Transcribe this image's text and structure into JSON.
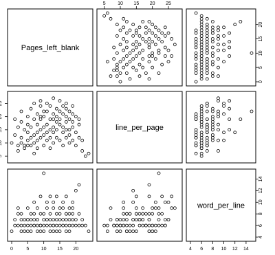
{
  "chart_data": {
    "type": "scatter",
    "variables": [
      "Pages_left_blank",
      "line_per_page",
      "word_per_line"
    ],
    "ranges": {
      "Pages_left_blank": [
        0,
        24
      ],
      "line_per_page": [
        4,
        28
      ],
      "word_per_line": [
        4,
        15
      ]
    },
    "ticks": {
      "Pages_left_blank": [
        0,
        5,
        10,
        15,
        20
      ],
      "line_per_page": [
        5,
        10,
        15,
        20,
        25
      ],
      "word_per_line": [
        4,
        6,
        8,
        10,
        12,
        14
      ]
    },
    "ticklabels": {
      "Pages_left_blank": [
        "0",
        "5",
        "10",
        "15",
        "20"
      ],
      "line_per_page": [
        "5",
        "10",
        "15",
        "20",
        "25"
      ],
      "word_per_line": [
        "4",
        "6",
        "8",
        "10",
        "12",
        "14"
      ]
    },
    "records": [
      [
        0,
        10,
        5
      ],
      [
        1,
        13,
        6
      ],
      [
        1,
        19,
        7
      ],
      [
        2,
        9,
        6
      ],
      [
        2,
        16,
        8
      ],
      [
        2,
        7,
        9
      ],
      [
        3,
        12,
        5
      ],
      [
        3,
        18,
        6
      ],
      [
        3,
        10,
        7
      ],
      [
        3,
        22,
        8
      ],
      [
        4,
        8,
        6
      ],
      [
        4,
        15,
        7
      ],
      [
        4,
        9,
        5
      ],
      [
        5,
        11,
        6
      ],
      [
        5,
        17,
        7
      ],
      [
        5,
        20,
        9
      ],
      [
        5,
        14,
        5
      ],
      [
        6,
        12,
        8
      ],
      [
        6,
        23,
        6
      ],
      [
        6,
        16,
        7
      ],
      [
        6,
        9,
        5
      ],
      [
        7,
        6,
        6
      ],
      [
        7,
        19,
        7
      ],
      [
        7,
        13,
        8
      ],
      [
        7,
        25,
        10
      ],
      [
        7,
        10,
        6
      ],
      [
        8,
        14,
        7
      ],
      [
        8,
        21,
        5
      ],
      [
        8,
        8,
        6
      ],
      [
        8,
        17,
        9
      ],
      [
        8,
        11,
        7
      ],
      [
        9,
        24,
        6
      ],
      [
        9,
        15,
        8
      ],
      [
        9,
        12,
        5
      ],
      [
        9,
        19,
        6
      ],
      [
        9,
        26,
        11
      ],
      [
        10,
        22,
        15
      ],
      [
        10,
        9,
        7
      ],
      [
        10,
        16,
        6
      ],
      [
        10,
        13,
        8
      ],
      [
        10,
        20,
        5
      ],
      [
        11,
        25,
        7
      ],
      [
        11,
        17,
        6
      ],
      [
        11,
        11,
        10
      ],
      [
        11,
        14,
        7
      ],
      [
        11,
        22,
        9
      ],
      [
        12,
        8,
        6
      ],
      [
        12,
        19,
        11
      ],
      [
        12,
        15,
        5
      ],
      [
        12,
        24,
        7
      ],
      [
        12,
        12,
        8
      ],
      [
        13,
        21,
        6
      ],
      [
        13,
        27,
        9
      ],
      [
        13,
        16,
        7
      ],
      [
        13,
        10,
        6
      ],
      [
        13,
        14,
        10
      ],
      [
        14,
        23,
        8
      ],
      [
        14,
        18,
        6
      ],
      [
        14,
        12,
        7
      ],
      [
        14,
        20,
        5
      ],
      [
        14,
        15,
        11
      ],
      [
        15,
        26,
        9
      ],
      [
        15,
        22,
        6
      ],
      [
        15,
        17,
        7
      ],
      [
        15,
        11,
        8
      ],
      [
        15,
        19,
        5
      ],
      [
        16,
        24,
        10
      ],
      [
        16,
        14,
        6
      ],
      [
        16,
        21,
        9
      ],
      [
        16,
        16,
        7
      ],
      [
        16,
        9,
        6
      ],
      [
        17,
        20,
        8
      ],
      [
        17,
        25,
        7
      ],
      [
        17,
        12,
        5
      ],
      [
        17,
        18,
        6
      ],
      [
        17,
        23,
        11
      ],
      [
        18,
        15,
        9
      ],
      [
        18,
        22,
        7
      ],
      [
        18,
        10,
        6
      ],
      [
        18,
        19,
        8
      ],
      [
        18,
        13,
        5
      ],
      [
        19,
        21,
        10
      ],
      [
        19,
        16,
        7
      ],
      [
        19,
        24,
        6
      ],
      [
        19,
        11,
        9
      ],
      [
        19,
        18,
        8
      ],
      [
        20,
        14,
        12
      ],
      [
        20,
        20,
        6
      ],
      [
        20,
        9,
        7
      ],
      [
        21,
        17,
        8
      ],
      [
        21,
        12,
        6
      ],
      [
        21,
        19,
        13
      ],
      [
        22,
        7,
        7
      ],
      [
        22,
        11,
        6
      ],
      [
        23,
        5,
        6
      ],
      [
        24,
        6,
        5
      ],
      [
        5,
        9,
        7
      ],
      [
        9,
        20,
        6
      ],
      [
        13,
        19,
        5
      ],
      [
        17,
        15,
        8
      ]
    ]
  }
}
